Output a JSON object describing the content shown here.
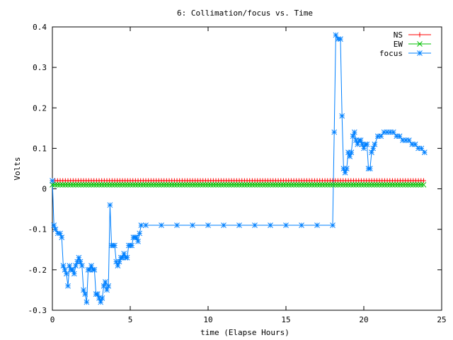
{
  "chart_data": {
    "type": "line",
    "title": "6: Collimation/focus vs. Time",
    "xlabel": "time (Elapse Hours)",
    "ylabel": "Volts",
    "xlim": [
      0,
      25
    ],
    "ylim": [
      -0.3,
      0.4
    ],
    "xticks": [
      0,
      5,
      10,
      15,
      20,
      25
    ],
    "xtick_labels": [
      "0",
      "5",
      "10",
      "15",
      "20",
      "25"
    ],
    "yticks": [
      -0.3,
      -0.2,
      -0.1,
      0,
      0.1,
      0.2,
      0.3,
      0.4
    ],
    "ytick_labels": [
      "-0.3",
      "-0.2",
      "-0.1",
      "0",
      "0.1",
      "0.2",
      "0.3",
      "0.4"
    ],
    "grid": false,
    "legend_position": "top-right",
    "series": [
      {
        "name": "NS",
        "color": "#ff0000",
        "marker": "plus",
        "x_range": [
          0,
          24
        ],
        "step": 0.1667,
        "constant_value": 0.02
      },
      {
        "name": "EW",
        "color": "#00c000",
        "marker": "cross",
        "x_range": [
          0,
          24
        ],
        "step": 0.1667,
        "constant_value": 0.01
      },
      {
        "name": "focus",
        "color": "#0080ff",
        "marker": "star",
        "points": [
          [
            0,
            0.02
          ],
          [
            0.1,
            -0.09
          ],
          [
            0.2,
            -0.1
          ],
          [
            0.35,
            -0.11
          ],
          [
            0.5,
            -0.11
          ],
          [
            0.6,
            -0.12
          ],
          [
            0.7,
            -0.19
          ],
          [
            0.8,
            -0.2
          ],
          [
            0.9,
            -0.21
          ],
          [
            1.0,
            -0.24
          ],
          [
            1.1,
            -0.19
          ],
          [
            1.2,
            -0.2
          ],
          [
            1.3,
            -0.2
          ],
          [
            1.4,
            -0.21
          ],
          [
            1.5,
            -0.19
          ],
          [
            1.6,
            -0.18
          ],
          [
            1.7,
            -0.17
          ],
          [
            1.8,
            -0.18
          ],
          [
            1.9,
            -0.19
          ],
          [
            2.0,
            -0.25
          ],
          [
            2.1,
            -0.26
          ],
          [
            2.2,
            -0.28
          ],
          [
            2.3,
            -0.2
          ],
          [
            2.4,
            -0.2
          ],
          [
            2.5,
            -0.19
          ],
          [
            2.6,
            -0.2
          ],
          [
            2.7,
            -0.2
          ],
          [
            2.8,
            -0.26
          ],
          [
            2.9,
            -0.26
          ],
          [
            3.0,
            -0.27
          ],
          [
            3.1,
            -0.28
          ],
          [
            3.2,
            -0.27
          ],
          [
            3.3,
            -0.24
          ],
          [
            3.4,
            -0.23
          ],
          [
            3.5,
            -0.25
          ],
          [
            3.6,
            -0.24
          ],
          [
            3.7,
            -0.04
          ],
          [
            3.8,
            -0.14
          ],
          [
            3.9,
            -0.14
          ],
          [
            4.0,
            -0.14
          ],
          [
            4.1,
            -0.18
          ],
          [
            4.2,
            -0.19
          ],
          [
            4.3,
            -0.18
          ],
          [
            4.4,
            -0.17
          ],
          [
            4.5,
            -0.17
          ],
          [
            4.6,
            -0.16
          ],
          [
            4.7,
            -0.17
          ],
          [
            4.8,
            -0.17
          ],
          [
            4.9,
            -0.14
          ],
          [
            5.0,
            -0.14
          ],
          [
            5.1,
            -0.14
          ],
          [
            5.2,
            -0.12
          ],
          [
            5.3,
            -0.12
          ],
          [
            5.4,
            -0.12
          ],
          [
            5.5,
            -0.13
          ],
          [
            5.6,
            -0.11
          ],
          [
            5.7,
            -0.09
          ],
          [
            6.0,
            -0.09
          ],
          [
            7.0,
            -0.09
          ],
          [
            8.0,
            -0.09
          ],
          [
            9.0,
            -0.09
          ],
          [
            10.0,
            -0.09
          ],
          [
            11.0,
            -0.09
          ],
          [
            12.0,
            -0.09
          ],
          [
            13.0,
            -0.09
          ],
          [
            14.0,
            -0.09
          ],
          [
            15.0,
            -0.09
          ],
          [
            16.0,
            -0.09
          ],
          [
            17.0,
            -0.09
          ],
          [
            18.0,
            -0.09
          ],
          [
            18.1,
            0.14
          ],
          [
            18.2,
            0.38
          ],
          [
            18.35,
            0.37
          ],
          [
            18.5,
            0.37
          ],
          [
            18.6,
            0.18
          ],
          [
            18.7,
            0.05
          ],
          [
            18.8,
            0.04
          ],
          [
            18.9,
            0.05
          ],
          [
            19.0,
            0.09
          ],
          [
            19.1,
            0.08
          ],
          [
            19.2,
            0.09
          ],
          [
            19.3,
            0.13
          ],
          [
            19.4,
            0.14
          ],
          [
            19.5,
            0.12
          ],
          [
            19.6,
            0.11
          ],
          [
            19.7,
            0.12
          ],
          [
            19.8,
            0.12
          ],
          [
            19.9,
            0.11
          ],
          [
            20.0,
            0.1
          ],
          [
            20.1,
            0.11
          ],
          [
            20.2,
            0.11
          ],
          [
            20.3,
            0.05
          ],
          [
            20.4,
            0.05
          ],
          [
            20.5,
            0.09
          ],
          [
            20.6,
            0.1
          ],
          [
            20.7,
            0.11
          ],
          [
            20.9,
            0.13
          ],
          [
            21.1,
            0.13
          ],
          [
            21.3,
            0.14
          ],
          [
            21.5,
            0.14
          ],
          [
            21.7,
            0.14
          ],
          [
            21.9,
            0.14
          ],
          [
            22.1,
            0.13
          ],
          [
            22.3,
            0.13
          ],
          [
            22.5,
            0.12
          ],
          [
            22.7,
            0.12
          ],
          [
            22.9,
            0.12
          ],
          [
            23.1,
            0.11
          ],
          [
            23.3,
            0.11
          ],
          [
            23.5,
            0.1
          ],
          [
            23.7,
            0.1
          ],
          [
            23.9,
            0.09
          ]
        ]
      }
    ]
  }
}
